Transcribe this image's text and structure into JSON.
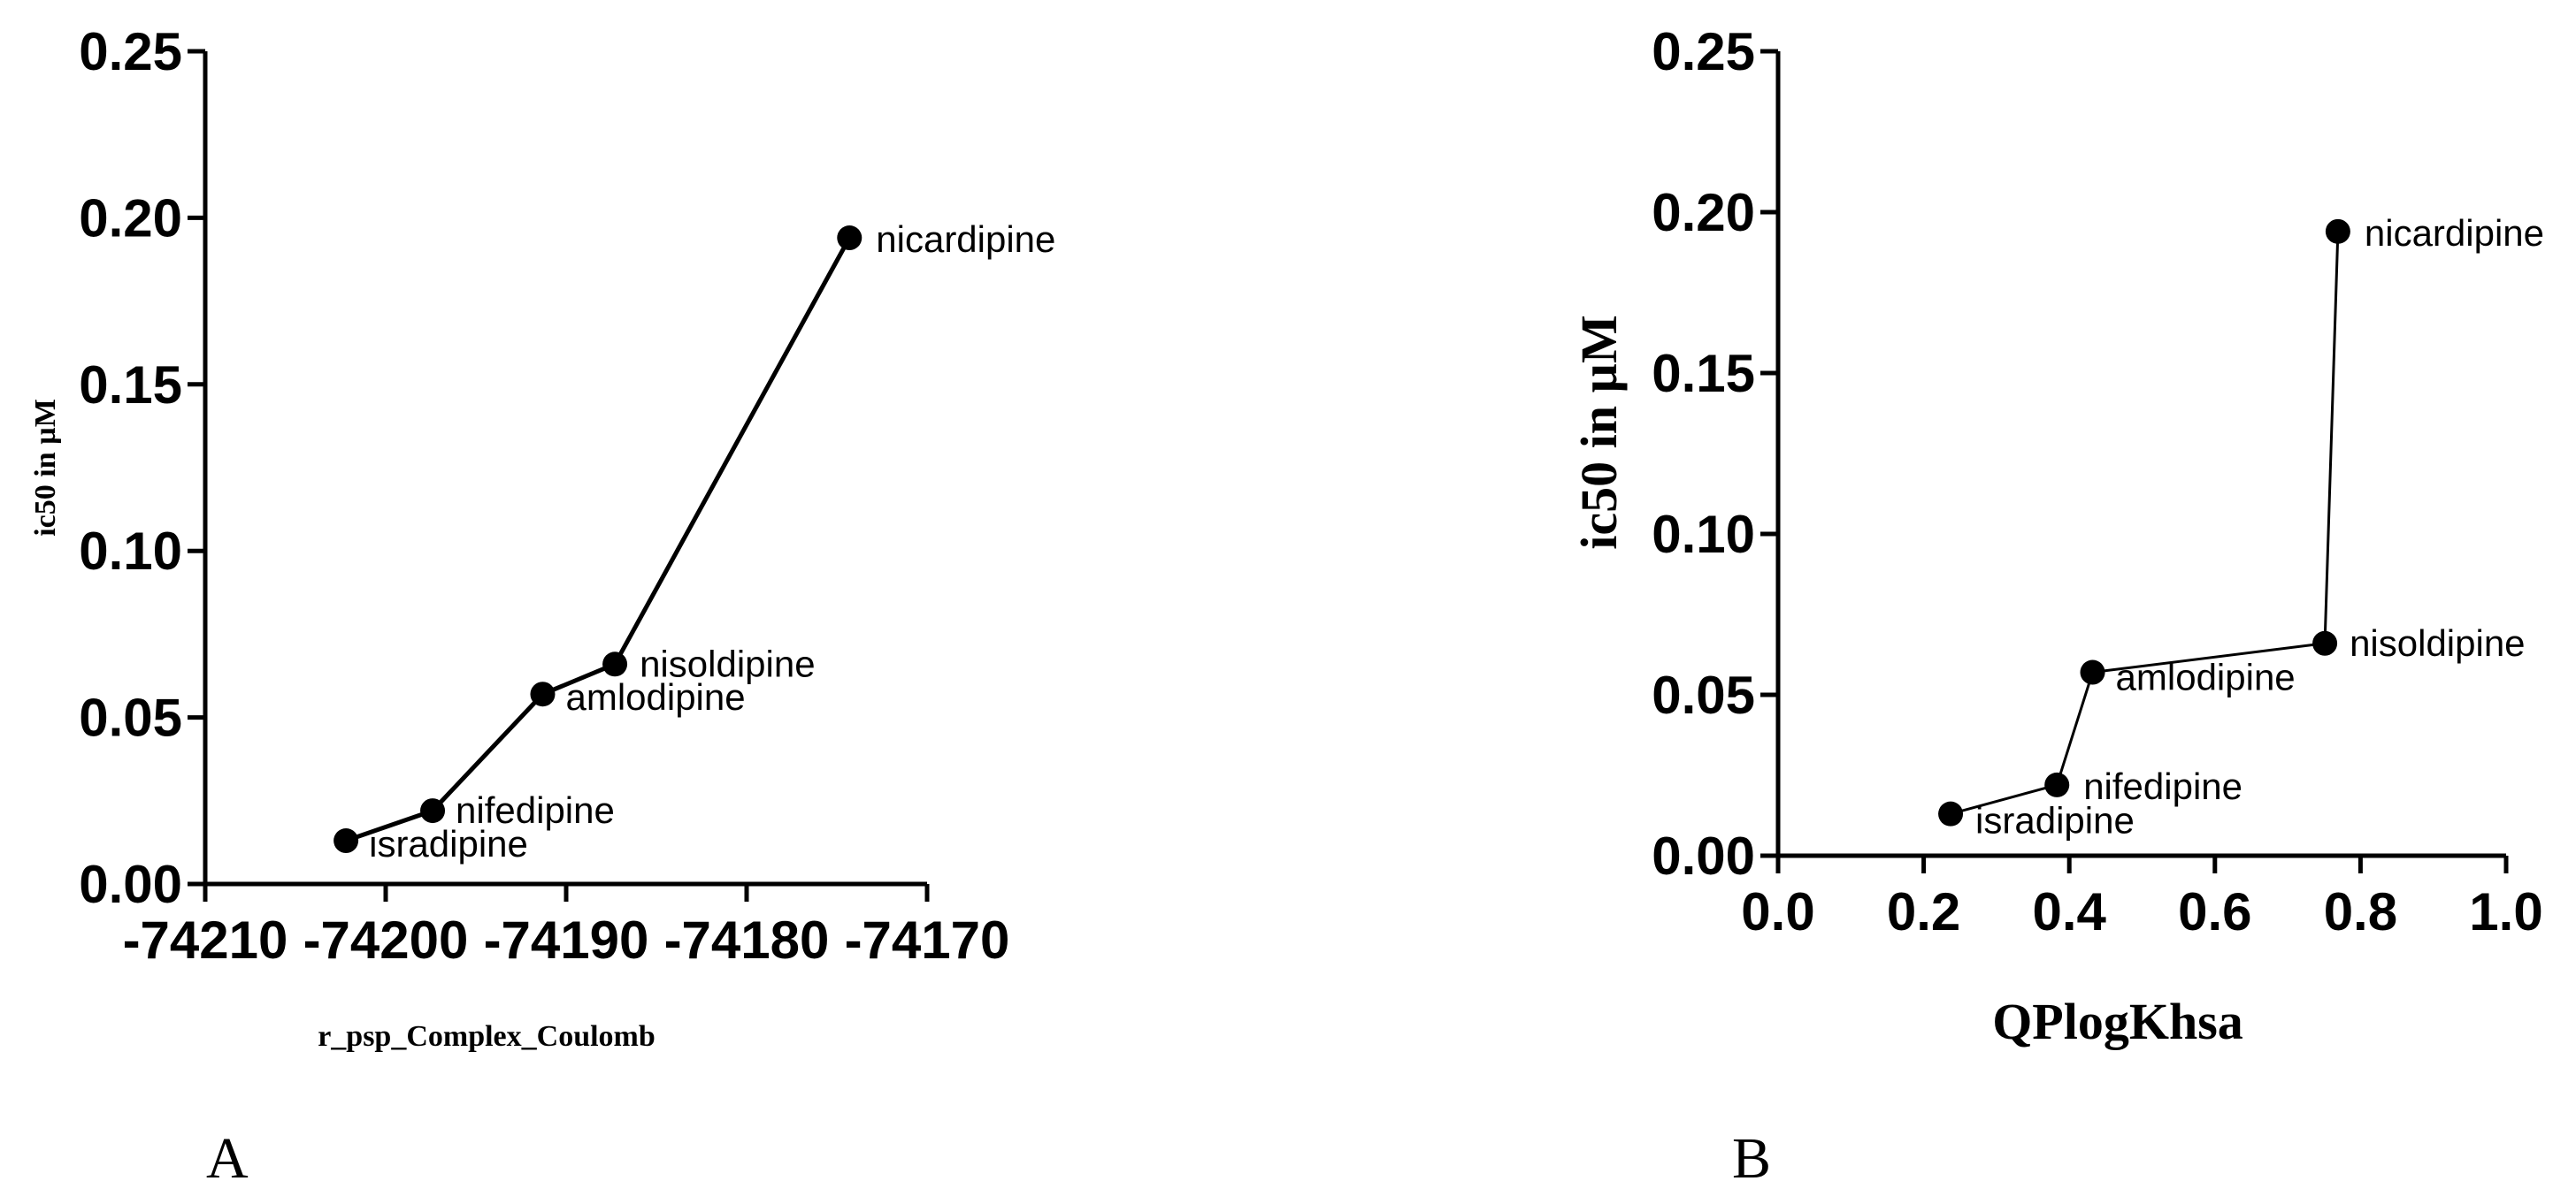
{
  "chart_data": [
    {
      "type": "line",
      "panel_label": "A",
      "xlabel": "r_psp_Complex_Coulomb",
      "ylabel": "ic50 in µM",
      "xlim": [
        -74210,
        -74170
      ],
      "ylim": [
        0,
        0.25
      ],
      "x_ticks": [
        "-74210",
        "-74200",
        "-74190",
        "-74180",
        "-74170"
      ],
      "y_ticks": [
        "0.00",
        "0.05",
        "0.10",
        "0.15",
        "0.20",
        "0.25"
      ],
      "grid": false,
      "points": [
        {
          "label": "isradipine",
          "x": -74202.2,
          "y": 0.013
        },
        {
          "label": "nifedipine",
          "x": -74197.4,
          "y": 0.022
        },
        {
          "label": "amlodipine",
          "x": -74191.3,
          "y": 0.057
        },
        {
          "label": "nisoldipine",
          "x": -74187.3,
          "y": 0.066
        },
        {
          "label": "nicardipine",
          "x": -74174.3,
          "y": 0.194
        }
      ]
    },
    {
      "type": "line",
      "panel_label": "B",
      "xlabel": "QPlogKhsa",
      "ylabel": "ic50 in µM",
      "xlim": [
        0,
        1
      ],
      "ylim": [
        0,
        0.25
      ],
      "x_ticks": [
        "0.0",
        "0.2",
        "0.4",
        "0.6",
        "0.8",
        "1.0"
      ],
      "y_ticks": [
        "0.00",
        "0.05",
        "0.10",
        "0.15",
        "0.20",
        "0.25"
      ],
      "grid": false,
      "points": [
        {
          "label": "isradipine",
          "x": 0.237,
          "y": 0.013
        },
        {
          "label": "nifedipine",
          "x": 0.383,
          "y": 0.022
        },
        {
          "label": "amlodipine",
          "x": 0.432,
          "y": 0.057
        },
        {
          "label": "nisoldipine",
          "x": 0.751,
          "y": 0.066
        },
        {
          "label": "nicardipine",
          "x": 0.769,
          "y": 0.194
        }
      ]
    }
  ]
}
